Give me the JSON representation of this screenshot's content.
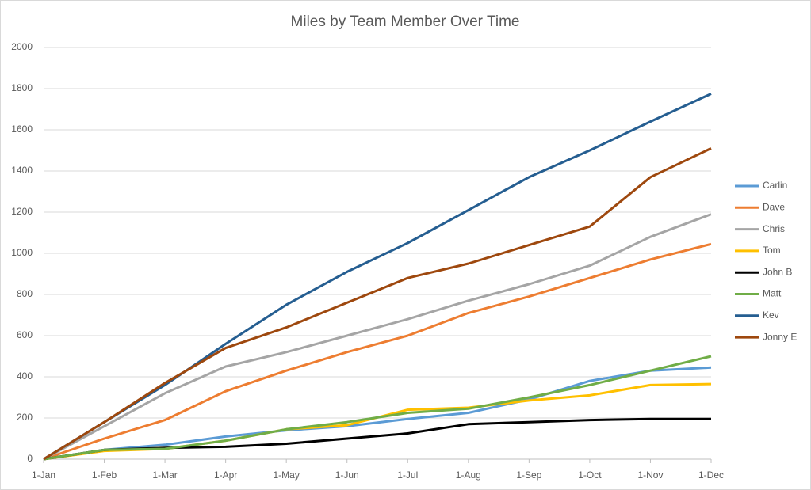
{
  "chart_data": {
    "type": "line",
    "title": "Miles by Team Member Over Time",
    "categories": [
      "1-Jan",
      "1-Feb",
      "1-Mar",
      "1-Apr",
      "1-May",
      "1-Jun",
      "1-Jul",
      "1-Aug",
      "1-Sep",
      "1-Oct",
      "1-Nov",
      "1-Dec"
    ],
    "series": [
      {
        "name": "Carlin",
        "color": "#5b9bd5",
        "values": [
          0,
          45,
          70,
          110,
          140,
          160,
          195,
          225,
          290,
          380,
          430,
          445
        ]
      },
      {
        "name": "Dave",
        "color": "#ed7d31",
        "values": [
          0,
          100,
          190,
          330,
          430,
          520,
          600,
          710,
          790,
          880,
          970,
          1045
        ]
      },
      {
        "name": "Chris",
        "color": "#a5a5a5",
        "values": [
          0,
          160,
          320,
          450,
          520,
          600,
          680,
          770,
          850,
          940,
          1080,
          1190
        ]
      },
      {
        "name": "Tom",
        "color": "#ffc000",
        "values": [
          0,
          40,
          50,
          90,
          145,
          165,
          240,
          250,
          285,
          310,
          360,
          365
        ]
      },
      {
        "name": "John B",
        "color": "#000000",
        "values": [
          0,
          45,
          55,
          60,
          75,
          100,
          125,
          170,
          180,
          190,
          195,
          195
        ]
      },
      {
        "name": "Matt",
        "color": "#70ad47",
        "values": [
          0,
          45,
          50,
          90,
          145,
          180,
          225,
          245,
          300,
          360,
          430,
          500
        ]
      },
      {
        "name": "Kev",
        "color": "#255e91",
        "values": [
          0,
          180,
          360,
          560,
          750,
          910,
          1050,
          1210,
          1370,
          1500,
          1640,
          1775
        ]
      },
      {
        "name": "Jonny E",
        "color": "#9e480e",
        "values": [
          0,
          180,
          370,
          540,
          640,
          760,
          880,
          950,
          1040,
          1130,
          1370,
          1510
        ]
      }
    ],
    "ylim": [
      0,
      2000
    ],
    "yticks": [
      0,
      200,
      400,
      600,
      800,
      1000,
      1200,
      1400,
      1600,
      1800,
      2000
    ],
    "grid": true,
    "legend": "right"
  }
}
